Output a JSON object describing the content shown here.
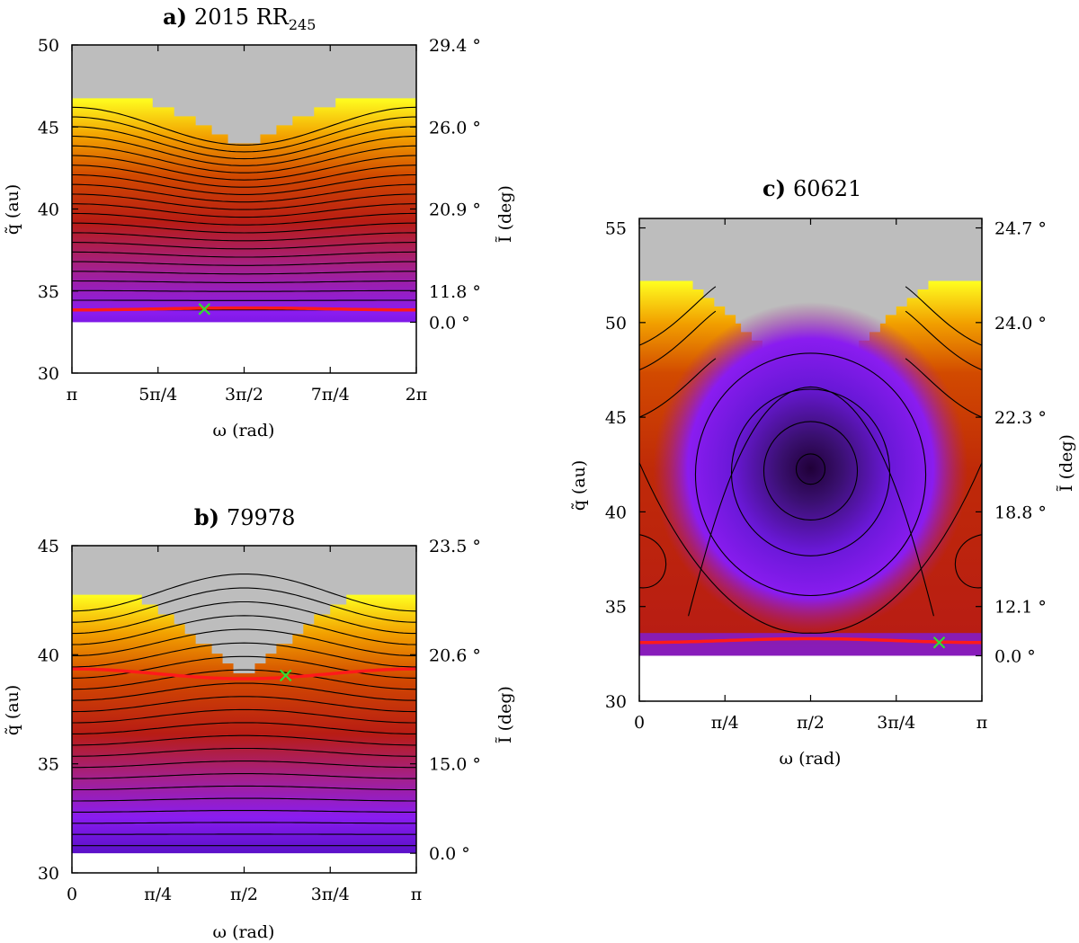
{
  "colors": {
    "forbidden": "#bdbdbd",
    "stable_curve": "#ff1a1a",
    "current_marker": "#33dd33",
    "level_curve": "#000000"
  },
  "chart_data": [
    {
      "id": "a",
      "type": "heatmap",
      "panel_letter": "a)",
      "title_prefix": "2015 RR",
      "title_sub": "245",
      "xlabel": "ω (rad)",
      "ylabel_left": "q̃ (au)",
      "ylabel_right": "Ĩ (deg)",
      "xlim": [
        3.14159,
        6.28319
      ],
      "ylim": [
        30,
        50
      ],
      "x_ticks": [
        3.14159,
        3.92699,
        4.71239,
        5.49779,
        6.28319
      ],
      "x_tick_labels": [
        "π",
        "5π/4",
        "3π/2",
        "7π/4",
        "2π"
      ],
      "y_ticks": [
        30,
        35,
        40,
        45,
        50
      ],
      "y_tick_labels": [
        "30",
        "35",
        "40",
        "45",
        "50"
      ],
      "right_ticks": [
        {
          "q": 50,
          "label": "29.4 °"
        },
        {
          "q": 45,
          "label": "26.0 °"
        },
        {
          "q": 40,
          "label": "20.9 °"
        },
        {
          "q": 35,
          "label": "11.8 °"
        },
        {
          "q": 33.1,
          "label": "0.0 °"
        }
      ],
      "q_min": 33.1,
      "hump": "up",
      "base_edge": 46.8,
      "edge_amp": 3.1,
      "edge_step": 0.55,
      "edge_width": 0.62,
      "curve_start": 33.85,
      "curve_end": 46.2,
      "curve_count": 22,
      "curve_amp_max": 2.3,
      "stable_q": 33.85,
      "stable_amp": 0.12,
      "marker": {
        "omega": 4.35,
        "q": 33.9
      }
    },
    {
      "id": "b",
      "type": "heatmap",
      "panel_letter": "b)",
      "title_prefix": "79978",
      "title_sub": "",
      "xlabel": "ω (rad)",
      "ylabel_left": "q̃ (au)",
      "ylabel_right": "Ĩ (deg)",
      "xlim": [
        0,
        3.14159
      ],
      "ylim": [
        30,
        45
      ],
      "x_ticks": [
        0,
        0.7854,
        1.5708,
        2.35619,
        3.14159
      ],
      "x_tick_labels": [
        "0",
        "π/4",
        "π/2",
        "3π/4",
        "π"
      ],
      "y_ticks": [
        30,
        35,
        40,
        45
      ],
      "y_tick_labels": [
        "30",
        "35",
        "40",
        "45"
      ],
      "right_ticks": [
        {
          "q": 45,
          "label": "23.5 °"
        },
        {
          "q": 40,
          "label": "20.6 °"
        },
        {
          "q": 35,
          "label": "15.0 °"
        },
        {
          "q": 30.9,
          "label": "0.0 °"
        }
      ],
      "q_min": 30.9,
      "hump": "down",
      "base_edge": 42.6,
      "edge_amp": 3.6,
      "edge_step": 0.45,
      "edge_width": 0.6,
      "curve_start": 31.25,
      "curve_end": 42.0,
      "curve_count": 22,
      "curve_amp_max": 1.7,
      "stable_q": 39.35,
      "stable_amp": 0.45,
      "marker": {
        "omega": 1.95,
        "q": 39.05
      }
    },
    {
      "id": "c",
      "type": "heatmap",
      "panel_letter": "c)",
      "title_prefix": "60621",
      "title_sub": "",
      "xlabel": "ω (rad)",
      "ylabel_left": "q̃ (au)",
      "ylabel_right": "Ĩ (deg)",
      "xlim": [
        0,
        3.14159
      ],
      "ylim": [
        30,
        55.5
      ],
      "x_ticks": [
        0,
        0.7854,
        1.5708,
        2.35619,
        3.14159
      ],
      "x_tick_labels": [
        "0",
        "π/4",
        "π/2",
        "3π/4",
        "π"
      ],
      "y_ticks": [
        30,
        35,
        40,
        45,
        50,
        55
      ],
      "y_tick_labels": [
        "30",
        "35",
        "40",
        "45",
        "50",
        "55"
      ],
      "right_ticks": [
        {
          "q": 55,
          "label": "24.7 °"
        },
        {
          "q": 50,
          "label": "24.0 °"
        },
        {
          "q": 45,
          "label": "22.3 °"
        },
        {
          "q": 40,
          "label": "18.8 °"
        },
        {
          "q": 35,
          "label": "12.1 °"
        },
        {
          "q": 32.4,
          "label": "0.0 °"
        }
      ],
      "q_min": 32.4,
      "hump": "resonance",
      "base_edge": 52.0,
      "edge_amp": 5.6,
      "edge_step": 0.45,
      "edge_width": 0.7,
      "island_center": {
        "omega": 1.5708,
        "q": 42.3
      },
      "island_levels": [
        0.8,
        2.6,
        4.4,
        6.4
      ],
      "outer_curves_q": [
        47.5,
        50.0,
        51.3
      ],
      "stable_q": 33.1,
      "stable_amp": 0.2,
      "marker": {
        "omega": 2.75,
        "q": 33.1
      }
    }
  ]
}
